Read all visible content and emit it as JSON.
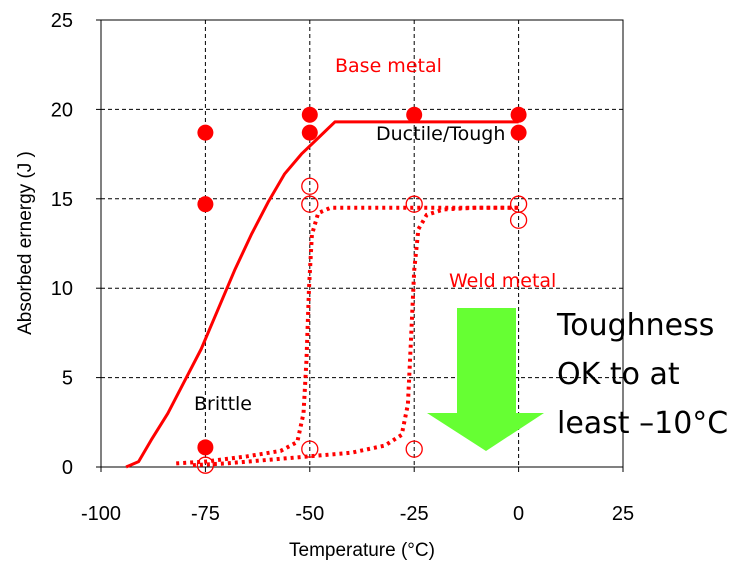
{
  "chart_data": {
    "type": "scatter",
    "xlabel": "Temperature (°C)",
    "ylabel": "Absorbed ernergy (J )",
    "xlim": [
      -100,
      25
    ],
    "ylim": [
      0,
      25
    ],
    "x_ticks": [
      "-100",
      "-75",
      "-50",
      "-25",
      "0",
      "25"
    ],
    "y_ticks": [
      "0",
      "5",
      "10",
      "15",
      "20",
      "25"
    ],
    "grid": true,
    "colors": {
      "series": "#ff0000",
      "arrow": "#66ff33",
      "grid": "#000000"
    },
    "series": [
      {
        "name": "Base metal",
        "marker": "filled-circle",
        "points": [
          [
            -75,
            18.7
          ],
          [
            -75,
            14.7
          ],
          [
            -75,
            1.1
          ],
          [
            -50,
            19.7
          ],
          [
            -50,
            18.7
          ],
          [
            -25,
            19.7
          ],
          [
            0,
            19.7
          ],
          [
            0,
            18.7
          ]
        ],
        "curve": [
          [
            -94,
            0
          ],
          [
            -91,
            0.3
          ],
          [
            -88,
            1.5
          ],
          [
            -84,
            3.0
          ],
          [
            -80,
            4.8
          ],
          [
            -76,
            6.6
          ],
          [
            -72,
            8.8
          ],
          [
            -68,
            11.0
          ],
          [
            -64,
            13.0
          ],
          [
            -60,
            14.8
          ],
          [
            -56,
            16.4
          ],
          [
            -52,
            17.5
          ],
          [
            -48,
            18.4
          ],
          [
            -44,
            19.3
          ],
          [
            -30,
            19.3
          ],
          [
            0,
            19.3
          ]
        ]
      },
      {
        "name": "Weld metal",
        "marker": "open-circle",
        "points": [
          [
            -75,
            0.1
          ],
          [
            -50,
            15.7
          ],
          [
            -50,
            14.7
          ],
          [
            -50,
            1.0
          ],
          [
            -25,
            14.7
          ],
          [
            -25,
            1.0
          ],
          [
            0,
            14.7
          ],
          [
            0,
            13.8
          ]
        ],
        "curves": [
          [
            [
              -82,
              0.2
            ],
            [
              -75,
              0.3
            ],
            [
              -65,
              0.6
            ],
            [
              -57,
              0.9
            ],
            [
              -53,
              1.4
            ],
            [
              -51.5,
              3
            ],
            [
              -50.8,
              6
            ],
            [
              -50.2,
              10
            ],
            [
              -49.5,
              13
            ],
            [
              -48,
              14.2
            ],
            [
              -45,
              14.5
            ],
            [
              -30,
              14.5
            ],
            [
              0,
              14.5
            ]
          ],
          [
            [
              -78,
              0.1
            ],
            [
              -70,
              0.2
            ],
            [
              -55,
              0.5
            ],
            [
              -40,
              0.8
            ],
            [
              -32,
              1.2
            ],
            [
              -28,
              1.8
            ],
            [
              -26.5,
              3.5
            ],
            [
              -25.8,
              7
            ],
            [
              -25,
              11
            ],
            [
              -24,
              13.3
            ],
            [
              -22,
              14.1
            ],
            [
              -18,
              14.4
            ],
            [
              -10,
              14.5
            ],
            [
              0,
              14.5
            ]
          ]
        ]
      }
    ],
    "annotations": {
      "base_metal": "Base metal",
      "ductile": "Ductile/Tough",
      "weld_metal": "Weld metal",
      "brittle": "Brittle",
      "note_line1": "Toughness",
      "note_line2": "OK to at",
      "note_line3": "least –10°C"
    }
  }
}
